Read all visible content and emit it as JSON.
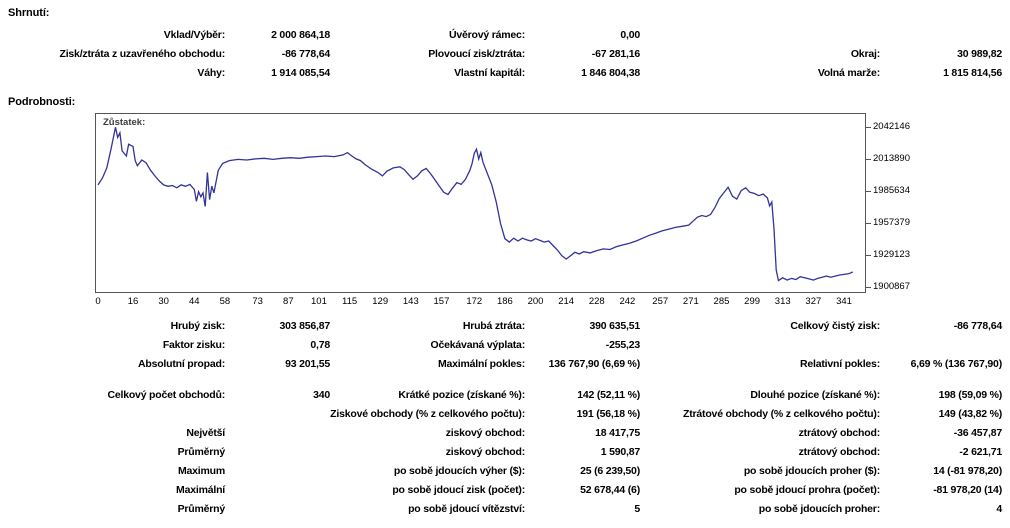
{
  "summary": {
    "title": "Shrnutí:",
    "rows": [
      [
        "Vklad/Výběr:",
        "2 000 864,18",
        "Úvěrový rámec:",
        "0,00",
        "",
        ""
      ],
      [
        "Zisk/ztráta z uzavřeného obchodu:",
        "-86 778,64",
        "Plovoucí zisk/ztráta:",
        "-67 281,16",
        "Okraj:",
        "30 989,82"
      ],
      [
        "Váhy:",
        "1 914 085,54",
        "Vlastní kapitál:",
        "1 846 804,38",
        "Volná marže:",
        "1 815 814,56"
      ]
    ]
  },
  "details_title": "Podrobnosti:",
  "chart_data": {
    "type": "line",
    "label": "Zůstatek:",
    "line_color": "#333399",
    "legend_position": "top-left-inside",
    "grid": false,
    "y_ticks": [
      2042146,
      2013890,
      1985634,
      1957379,
      1929123,
      1900867
    ],
    "x_ticks": [
      0,
      16,
      30,
      44,
      58,
      73,
      87,
      101,
      115,
      129,
      143,
      157,
      172,
      186,
      200,
      214,
      228,
      242,
      257,
      271,
      285,
      299,
      313,
      327,
      341
    ],
    "xlabel": "",
    "ylabel": "",
    "x_range": [
      0,
      352
    ],
    "y_range": [
      1895000,
      2047000
    ],
    "series": [
      {
        "name": "Zůstatek",
        "points": [
          [
            0,
            1991000
          ],
          [
            2,
            1997000
          ],
          [
            4,
            2006000
          ],
          [
            6,
            2023000
          ],
          [
            8,
            2042000
          ],
          [
            9,
            2033000
          ],
          [
            10,
            2037000
          ],
          [
            11,
            2021000
          ],
          [
            13,
            2016500
          ],
          [
            14,
            2027000
          ],
          [
            16,
            2025000
          ],
          [
            17,
            2012500
          ],
          [
            18,
            2008000
          ],
          [
            20,
            2013000
          ],
          [
            22,
            2010500
          ],
          [
            24,
            2004000
          ],
          [
            26,
            1999000
          ],
          [
            28,
            1994500
          ],
          [
            30,
            1991000
          ],
          [
            32,
            1989800
          ],
          [
            34,
            1990500
          ],
          [
            36,
            1988500
          ],
          [
            38,
            1991000
          ],
          [
            40,
            1989800
          ],
          [
            42,
            1991500
          ],
          [
            44,
            1987000
          ],
          [
            45,
            1976500
          ],
          [
            46,
            1985000
          ],
          [
            47,
            1980500
          ],
          [
            48,
            1984000
          ],
          [
            49,
            1972000
          ],
          [
            50,
            2002000
          ],
          [
            51,
            1978000
          ],
          [
            52,
            1990000
          ],
          [
            53,
            1984000
          ],
          [
            55,
            2004000
          ],
          [
            57,
            2010000
          ],
          [
            60,
            2012500
          ],
          [
            64,
            2013500
          ],
          [
            68,
            2013000
          ],
          [
            72,
            2014000
          ],
          [
            76,
            2014500
          ],
          [
            80,
            2013500
          ],
          [
            84,
            2014500
          ],
          [
            88,
            2015000
          ],
          [
            92,
            2014500
          ],
          [
            96,
            2015500
          ],
          [
            100,
            2016000
          ],
          [
            104,
            2016500
          ],
          [
            108,
            2016000
          ],
          [
            112,
            2017500
          ],
          [
            114,
            2019500
          ],
          [
            116,
            2016500
          ],
          [
            118,
            2014000
          ],
          [
            120,
            2012500
          ],
          [
            122,
            2009000
          ],
          [
            125,
            2005000
          ],
          [
            128,
            2002000
          ],
          [
            130,
            1999000
          ],
          [
            132,
            2003000
          ],
          [
            135,
            2006000
          ],
          [
            138,
            2007000
          ],
          [
            140,
            2004500
          ],
          [
            142,
            2000000
          ],
          [
            144,
            1996000
          ],
          [
            146,
            1999000
          ],
          [
            148,
            2003500
          ],
          [
            150,
            2005500
          ],
          [
            152,
            2001000
          ],
          [
            154,
            1995500
          ],
          [
            156,
            1990000
          ],
          [
            158,
            1984500
          ],
          [
            160,
            1982500
          ],
          [
            162,
            1988000
          ],
          [
            164,
            1993000
          ],
          [
            166,
            1991500
          ],
          [
            168,
            1996000
          ],
          [
            170,
            2004000
          ],
          [
            171,
            2010000
          ],
          [
            172,
            2019000
          ],
          [
            173,
            2022500
          ],
          [
            174,
            2014000
          ],
          [
            175,
            2019500
          ],
          [
            176,
            2011000
          ],
          [
            178,
            2001000
          ],
          [
            180,
            1991000
          ],
          [
            182,
            1976000
          ],
          [
            184,
            1957000
          ],
          [
            186,
            1943500
          ],
          [
            188,
            1940500
          ],
          [
            190,
            1944000
          ],
          [
            192,
            1941500
          ],
          [
            194,
            1944000
          ],
          [
            196,
            1942500
          ],
          [
            198,
            1941500
          ],
          [
            200,
            1943500
          ],
          [
            202,
            1942000
          ],
          [
            204,
            1940500
          ],
          [
            206,
            1941500
          ],
          [
            208,
            1937500
          ],
          [
            210,
            1933500
          ],
          [
            212,
            1928500
          ],
          [
            214,
            1925500
          ],
          [
            216,
            1928500
          ],
          [
            218,
            1931500
          ],
          [
            220,
            1930000
          ],
          [
            222,
            1932000
          ],
          [
            225,
            1931000
          ],
          [
            228,
            1933000
          ],
          [
            231,
            1934500
          ],
          [
            234,
            1934000
          ],
          [
            237,
            1936500
          ],
          [
            240,
            1938000
          ],
          [
            243,
            1939500
          ],
          [
            246,
            1941500
          ],
          [
            249,
            1944000
          ],
          [
            252,
            1946500
          ],
          [
            255,
            1948500
          ],
          [
            258,
            1950500
          ],
          [
            261,
            1952000
          ],
          [
            264,
            1953500
          ],
          [
            267,
            1954500
          ],
          [
            270,
            1955500
          ],
          [
            272,
            1959000
          ],
          [
            274,
            1962500
          ],
          [
            276,
            1964000
          ],
          [
            278,
            1963000
          ],
          [
            280,
            1965000
          ],
          [
            282,
            1971000
          ],
          [
            284,
            1979000
          ],
          [
            286,
            1984000
          ],
          [
            288,
            1989000
          ],
          [
            290,
            1981000
          ],
          [
            292,
            1978500
          ],
          [
            294,
            1986000
          ],
          [
            296,
            1988500
          ],
          [
            298,
            1984500
          ],
          [
            300,
            1983500
          ],
          [
            302,
            1981500
          ],
          [
            304,
            1983000
          ],
          [
            306,
            1979500
          ],
          [
            307,
            1972500
          ],
          [
            308,
            1976000
          ],
          [
            309,
            1952000
          ],
          [
            310,
            1916000
          ],
          [
            311,
            1906500
          ],
          [
            313,
            1909000
          ],
          [
            315,
            1907000
          ],
          [
            317,
            1908500
          ],
          [
            319,
            1907500
          ],
          [
            321,
            1910000
          ],
          [
            323,
            1909000
          ],
          [
            325,
            1908000
          ],
          [
            327,
            1907000
          ],
          [
            329,
            1908500
          ],
          [
            331,
            1909500
          ],
          [
            333,
            1910500
          ],
          [
            335,
            1909500
          ],
          [
            337,
            1910500
          ],
          [
            339,
            1911500
          ],
          [
            341,
            1912000
          ],
          [
            343,
            1912500
          ],
          [
            345,
            1914086
          ]
        ]
      }
    ]
  },
  "stats_top": {
    "rows": [
      [
        "Hrubý zisk:",
        "303 856,87",
        "Hrubá ztráta:",
        "390 635,51",
        "Celkový čistý zisk:",
        "-86 778,64"
      ],
      [
        "Faktor zisku:",
        "0,78",
        "Očekávaná výplata:",
        "-255,23",
        "",
        ""
      ],
      [
        "Absolutní propad:",
        "93 201,55",
        "Maximální pokles:",
        "136 767,90 (6,69 %)",
        "Relativní pokles:",
        "6,69 % (136 767,90)"
      ]
    ]
  },
  "stats_bottom": {
    "rows": [
      [
        "Celkový počet obchodů:",
        "340",
        "Krátké pozice (získané %):",
        "142 (52,11 %)",
        "Dlouhé pozice (získané %):",
        "198 (59,09 %)"
      ],
      [
        "",
        "",
        "Ziskové obchody (% z celkového počtu):",
        "191 (56,18 %)",
        "Ztrátové obchody (% z celkového počtu):",
        "149 (43,82 %)"
      ],
      [
        "Největší",
        "",
        "ziskový obchod:",
        "18 417,75",
        "ztrátový obchod:",
        "-36 457,87"
      ],
      [
        "Průměrný",
        "",
        "ziskový obchod:",
        "1 590,87",
        "ztrátový obchod:",
        "-2 621,71"
      ],
      [
        "Maximum",
        "",
        "po sobě jdoucích výher ($):",
        "25 (6 239,50)",
        "po sobě jdoucích proher ($):",
        "14 (-81 978,20)"
      ],
      [
        "Maximální",
        "",
        "po sobě jdoucí zisk (počet):",
        "52 678,44 (6)",
        "po sobě jdoucí prohra (počet):",
        "-81 978,20 (14)"
      ],
      [
        "Průměrný",
        "",
        "po sobě jdoucí vítězství:",
        "5",
        "po sobě jdoucích proher:",
        "4"
      ]
    ]
  }
}
